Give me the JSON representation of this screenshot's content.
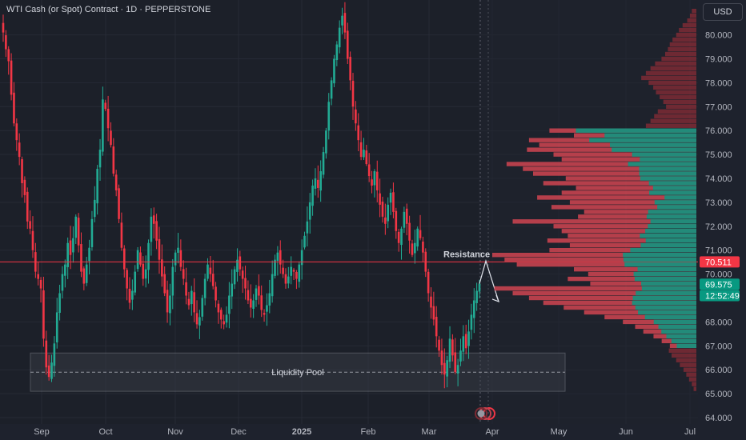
{
  "header": {
    "title": "WTI Cash (or Spot) Contract · 1D · PEPPERSTONE"
  },
  "currency_button": "USD",
  "chart_data": {
    "type": "candlestick",
    "instrument": "WTI Cash (or Spot) Contract",
    "interval": "1D",
    "source": "PEPPERSTONE",
    "ylim": [
      64.0,
      81.0
    ],
    "y_ticks": [
      "64.000",
      "65.000",
      "66.000",
      "67.000",
      "68.000",
      "69.000",
      "70.000",
      "71.000",
      "72.000",
      "73.000",
      "74.000",
      "75.000",
      "76.000",
      "77.000",
      "78.000",
      "79.000",
      "80.000"
    ],
    "x_ticks": [
      "Sep",
      "Oct",
      "Nov",
      "Dec",
      "2025",
      "Feb",
      "Mar",
      "Apr",
      "May",
      "Jun",
      "Jul"
    ],
    "x_tick_bold": [
      false,
      false,
      false,
      false,
      true,
      false,
      false,
      false,
      false,
      false,
      false
    ],
    "closes": [
      80.1,
      79.4,
      78.9,
      77.5,
      76.3,
      75.6,
      74.9,
      73.8,
      73.3,
      72.2,
      71.9,
      71.0,
      70.1,
      69.8,
      69.4,
      67.3,
      66.1,
      65.7,
      66.3,
      67.1,
      68.4,
      69.2,
      70.0,
      70.4,
      71.3,
      70.8,
      71.5,
      72.4,
      71.2,
      70.1,
      69.6,
      70.4,
      71.1,
      72.3,
      73.1,
      74.4,
      75.2,
      77.3,
      76.9,
      76.1,
      75.4,
      74.2,
      73.5,
      72.3,
      71.1,
      70.2,
      69.4,
      68.8,
      69.3,
      70.1,
      71.0,
      70.4,
      69.8,
      70.2,
      71.3,
      72.4,
      72.1,
      71.4,
      70.6,
      69.9,
      69.2,
      68.4,
      69.1,
      70.3,
      70.9,
      71.1,
      70.3,
      69.8,
      69.1,
      68.7,
      69.3,
      68.4,
      67.9,
      68.2,
      69.0,
      69.8,
      70.4,
      70.0,
      69.5,
      68.9,
      68.4,
      68.1,
      67.9,
      68.3,
      69.1,
      69.6,
      70.2,
      70.6,
      70.2,
      69.8,
      69.4,
      68.9,
      68.6,
      68.9,
      69.4,
      69.1,
      68.5,
      68.3,
      68.7,
      69.2,
      70.0,
      70.6,
      70.9,
      70.4,
      70.0,
      69.6,
      69.9,
      70.3,
      70.1,
      69.8,
      70.4,
      71.0,
      71.6,
      72.2,
      73.0,
      73.7,
      74.0,
      73.6,
      74.3,
      75.1,
      76.0,
      77.2,
      78.1,
      79.0,
      79.6,
      80.3,
      80.8,
      80.1,
      79.0,
      78.1,
      77.0,
      76.3,
      75.6,
      74.9,
      75.2,
      74.6,
      74.1,
      73.7,
      74.3,
      73.5,
      72.9,
      72.4,
      72.1,
      72.9,
      73.4,
      72.6,
      71.8,
      71.3,
      71.9,
      72.6,
      72.1,
      71.4,
      70.8,
      71.3,
      71.9,
      71.5,
      70.9,
      70.1,
      69.2,
      68.6,
      68.1,
      67.4,
      66.8,
      66.2,
      65.8,
      66.4,
      67.3,
      66.6,
      65.9,
      66.2,
      66.8,
      67.4,
      66.9,
      67.6,
      68.3,
      68.9,
      69.3,
      69.6
    ],
    "resistance_level": 70.511,
    "liquidity_pool": {
      "label": "Liquidity Pool",
      "top": 66.7,
      "bottom": 65.1,
      "mid": 65.9
    },
    "annotations": {
      "resistance_label": "Resistance"
    },
    "projection": [
      69.6,
      70.55,
      68.85
    ],
    "price_labels": [
      {
        "text": "70.511",
        "value": 70.511,
        "color": "#f23645"
      },
      {
        "text": "69.575",
        "value": 69.575,
        "color": "#089981"
      },
      {
        "text": "12:52:49",
        "value": 69.1,
        "color": "#089981"
      }
    ],
    "volume_profile_levels": [
      76.0,
      75.8,
      75.6,
      75.4,
      75.2,
      75.0,
      74.8,
      74.6,
      74.4,
      74.2,
      74.0,
      73.8,
      73.6,
      73.4,
      73.2,
      73.0,
      72.8,
      72.6,
      72.4,
      72.2,
      72.0,
      71.8,
      71.6,
      71.4,
      71.2,
      71.0,
      70.8,
      70.6,
      70.4,
      70.2,
      70.0,
      69.8,
      69.6,
      69.4,
      69.2,
      69.0,
      68.8,
      68.6,
      68.4,
      68.2,
      68.0,
      67.8,
      67.6,
      67.4,
      67.2,
      67.0
    ],
    "volume_profile_totals": [
      0.72,
      0.6,
      0.82,
      0.77,
      0.83,
      0.7,
      0.66,
      0.93,
      0.85,
      0.8,
      0.64,
      0.75,
      0.59,
      0.66,
      0.78,
      0.62,
      0.71,
      0.55,
      0.58,
      0.9,
      0.7,
      0.66,
      0.63,
      0.73,
      0.62,
      0.72,
      1.0,
      0.94,
      0.88,
      0.6,
      0.53,
      0.63,
      0.52,
      0.99,
      0.9,
      0.82,
      0.75,
      0.65,
      0.55,
      0.45,
      0.36,
      0.3,
      0.26,
      0.21,
      0.17,
      0.13
    ],
    "volume_profile_up_share": [
      0.82,
      0.75,
      0.64,
      0.55,
      0.5,
      0.45,
      0.42,
      0.36,
      0.33,
      0.35,
      0.43,
      0.31,
      0.36,
      0.35,
      0.2,
      0.33,
      0.27,
      0.43,
      0.42,
      0.25,
      0.34,
      0.38,
      0.44,
      0.34,
      0.44,
      0.45,
      0.36,
      0.38,
      0.4,
      0.48,
      0.58,
      0.48,
      0.52,
      0.27,
      0.33,
      0.38,
      0.42,
      0.46,
      0.52,
      0.56,
      0.58,
      0.62,
      0.66,
      0.7,
      0.72,
      0.74
    ],
    "volume_profile_faded_levels": [
      81.0,
      80.8,
      80.6,
      80.4,
      80.2,
      80.0,
      79.8,
      79.6,
      79.4,
      79.2,
      79.0,
      78.8,
      78.6,
      78.4,
      78.2,
      78.0,
      77.8,
      77.6,
      77.4,
      77.2,
      77.0,
      76.8,
      76.6,
      76.4,
      76.2,
      66.8,
      66.6,
      66.4,
      66.2,
      66.0,
      65.8,
      65.6,
      65.4,
      65.2
    ],
    "volume_profile_faded_totals": [
      0.05,
      0.07,
      0.1,
      0.15,
      0.19,
      0.22,
      0.26,
      0.29,
      0.31,
      0.34,
      0.38,
      0.45,
      0.5,
      0.55,
      0.6,
      0.52,
      0.47,
      0.44,
      0.4,
      0.36,
      0.33,
      0.42,
      0.46,
      0.5,
      0.55,
      0.3,
      0.27,
      0.22,
      0.18,
      0.14,
      0.11,
      0.08,
      0.05,
      0.03
    ]
  }
}
